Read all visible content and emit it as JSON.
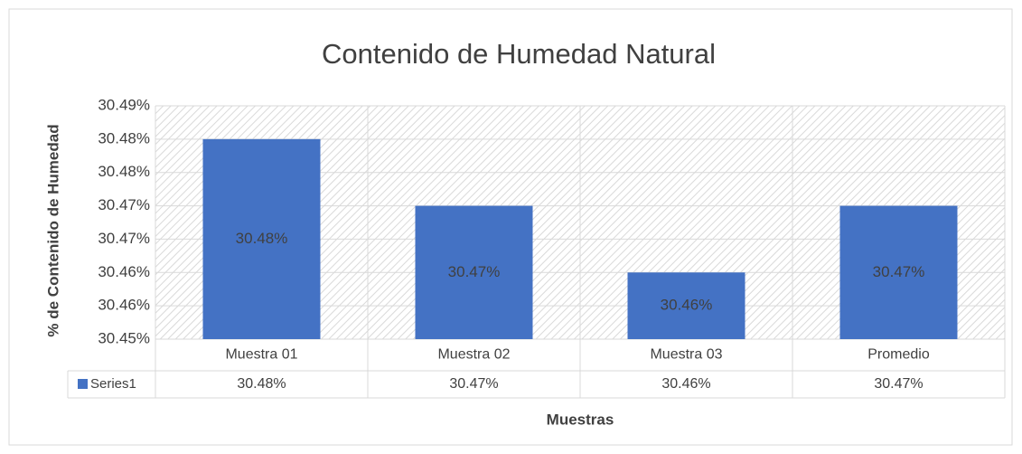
{
  "chart_data": {
    "type": "bar",
    "title": "Contenido de  Humedad Natural",
    "y_label": "% de Contenido de Humedad",
    "x_label": "Muestras",
    "categories": [
      "Muestra 01",
      "Muestra 02",
      "Muestra 03",
      "Promedio"
    ],
    "series": [
      {
        "name": "Series1",
        "color": "#4472c4",
        "values": [
          30.48,
          30.47,
          30.46,
          30.47
        ],
        "value_labels": [
          "30.48%",
          "30.47%",
          "30.46%",
          "30.47%"
        ]
      }
    ],
    "ylim": [
      30.45,
      30.485
    ],
    "yticks": [
      {
        "value": 30.45,
        "label": "30.45%"
      },
      {
        "value": 30.455,
        "label": "30.46%"
      },
      {
        "value": 30.46,
        "label": "30.46%"
      },
      {
        "value": 30.465,
        "label": "30.47%"
      },
      {
        "value": 30.47,
        "label": "30.47%"
      },
      {
        "value": 30.475,
        "label": "30.48%"
      },
      {
        "value": 30.48,
        "label": "30.48%"
      },
      {
        "value": 30.485,
        "label": "30.49%"
      }
    ],
    "grid": true,
    "data_table": true
  }
}
